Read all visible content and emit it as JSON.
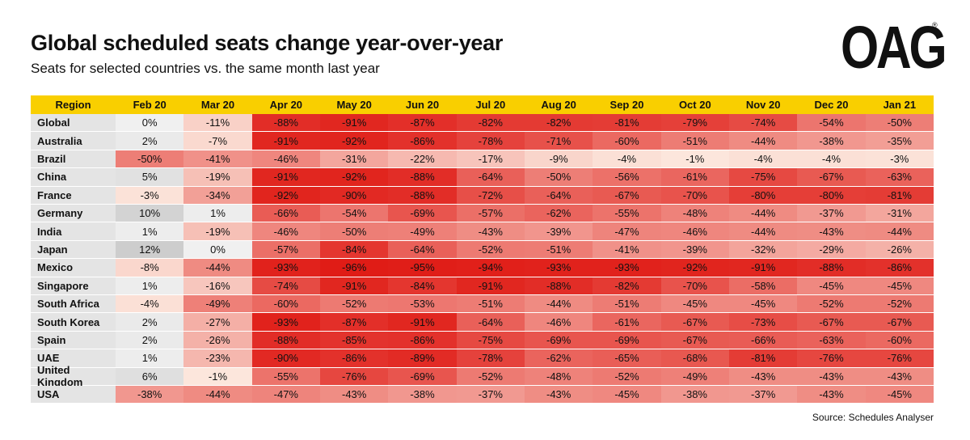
{
  "header": {
    "title": "Global scheduled seats change year-over-year",
    "subtitle": "Seats for selected countries vs. the same month last year",
    "logo": "OAG",
    "logo_mark": "®"
  },
  "table": {
    "columns": [
      "Region",
      "Feb 20",
      "Mar 20",
      "Apr 20",
      "May 20",
      "Jun 20",
      "Jul 20",
      "Aug 20",
      "Sep 20",
      "Oct 20",
      "Nov 20",
      "Dec 20",
      "Jan 21"
    ],
    "rows": [
      [
        "Global",
        "0%",
        "-11%",
        "-88%",
        "-91%",
        "-87%",
        "-82%",
        "-82%",
        "-81%",
        "-79%",
        "-74%",
        "-54%",
        "-50%"
      ],
      [
        "Australia",
        "2%",
        "-7%",
        "-91%",
        "-92%",
        "-86%",
        "-78%",
        "-71%",
        "-60%",
        "-51%",
        "-44%",
        "-38%",
        "-35%"
      ],
      [
        "Brazil",
        "-50%",
        "-41%",
        "-46%",
        "-31%",
        "-22%",
        "-17%",
        "-9%",
        "-4%",
        "-1%",
        "-4%",
        "-4%",
        "-3%"
      ],
      [
        "China",
        "5%",
        "-19%",
        "-91%",
        "-92%",
        "-88%",
        "-64%",
        "-50%",
        "-56%",
        "-61%",
        "-75%",
        "-67%",
        "-63%"
      ],
      [
        "France",
        "-3%",
        "-34%",
        "-92%",
        "-90%",
        "-88%",
        "-72%",
        "-64%",
        "-67%",
        "-70%",
        "-80%",
        "-80%",
        "-81%"
      ],
      [
        "Germany",
        "10%",
        "1%",
        "-66%",
        "-54%",
        "-69%",
        "-57%",
        "-62%",
        "-55%",
        "-48%",
        "-44%",
        "-37%",
        "-31%"
      ],
      [
        "India",
        "1%",
        "-19%",
        "-46%",
        "-50%",
        "-49%",
        "-43%",
        "-39%",
        "-47%",
        "-46%",
        "-44%",
        "-43%",
        "-44%"
      ],
      [
        "Japan",
        "12%",
        "0%",
        "-57%",
        "-84%",
        "-64%",
        "-52%",
        "-51%",
        "-41%",
        "-39%",
        "-32%",
        "-29%",
        "-26%"
      ],
      [
        "Mexico",
        "-8%",
        "-44%",
        "-93%",
        "-96%",
        "-95%",
        "-94%",
        "-93%",
        "-93%",
        "-92%",
        "-91%",
        "-88%",
        "-86%"
      ],
      [
        "Singapore",
        "1%",
        "-16%",
        "-74%",
        "-91%",
        "-84%",
        "-91%",
        "-88%",
        "-82%",
        "-70%",
        "-58%",
        "-45%",
        "-45%"
      ],
      [
        "South Africa",
        "-4%",
        "-49%",
        "-60%",
        "-52%",
        "-53%",
        "-51%",
        "-44%",
        "-51%",
        "-45%",
        "-45%",
        "-52%",
        "-52%"
      ],
      [
        "South Korea",
        "2%",
        "-27%",
        "-93%",
        "-87%",
        "-91%",
        "-64%",
        "-46%",
        "-61%",
        "-67%",
        "-73%",
        "-67%",
        "-67%"
      ],
      [
        "Spain",
        "2%",
        "-26%",
        "-88%",
        "-85%",
        "-86%",
        "-75%",
        "-69%",
        "-69%",
        "-67%",
        "-66%",
        "-63%",
        "-60%"
      ],
      [
        "UAE",
        "1%",
        "-23%",
        "-90%",
        "-86%",
        "-89%",
        "-78%",
        "-62%",
        "-65%",
        "-68%",
        "-81%",
        "-76%",
        "-76%"
      ],
      [
        "United Kingdom",
        "6%",
        "-1%",
        "-55%",
        "-76%",
        "-69%",
        "-52%",
        "-48%",
        "-52%",
        "-49%",
        "-43%",
        "-43%",
        "-43%"
      ],
      [
        "USA",
        "-38%",
        "-44%",
        "-47%",
        "-43%",
        "-38%",
        "-37%",
        "-43%",
        "-45%",
        "-38%",
        "-37%",
        "-43%",
        "-45%"
      ]
    ]
  },
  "footer": {
    "source": "Source: Schedules Analyser"
  }
}
